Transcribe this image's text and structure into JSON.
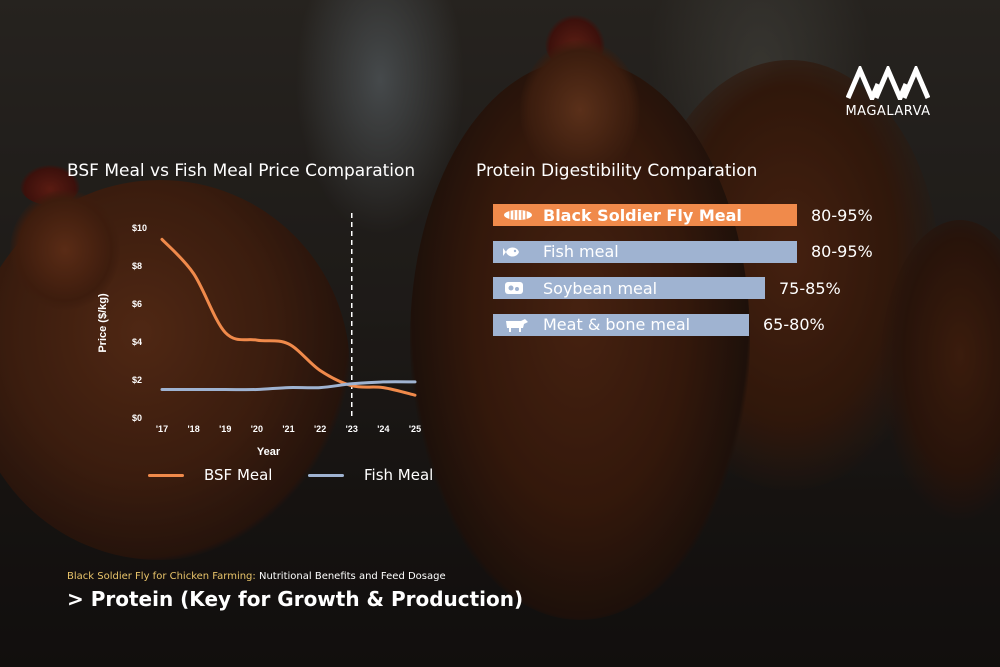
{
  "colors": {
    "bsf": "#f08a4b",
    "fish": "#9fb3d1",
    "bar_blue": "#9fb3d1",
    "bar_orange": "#f08a4b",
    "accent_text": "#e9c46a"
  },
  "logo": {
    "text": "MAGALARVA"
  },
  "left_title": "BSF Meal vs Fish Meal Price Comparation",
  "right_title": "Protein Digestibility Comparation",
  "legend": {
    "bsf": "BSF Meal",
    "fish": "Fish Meal"
  },
  "footer": {
    "subtitle_accent": "Black Soldier Fly for Chicken Farming:",
    "subtitle_rest": " Nutritional Benefits and Feed Dosage",
    "heading": "> Protein (Key for Growth & Production)"
  },
  "chart_data": [
    {
      "type": "line",
      "title": "BSF Meal vs Fish Meal Price Comparation",
      "xlabel": "Year",
      "ylabel": "Price ($/kg)",
      "x": [
        "'17",
        "'18",
        "'19",
        "'20",
        "'21",
        "'22",
        "'23",
        "'24",
        "'25"
      ],
      "yticks": [
        "$0",
        "$2",
        "$4",
        "$6",
        "$8",
        "$10"
      ],
      "ylim": [
        0,
        10
      ],
      "grid": false,
      "vertical_marker_at": "'23",
      "legend_position": "bottom",
      "series": [
        {
          "name": "BSF Meal",
          "values": [
            9.4,
            7.6,
            4.5,
            4.1,
            3.9,
            2.5,
            1.7,
            1.6,
            1.2
          ]
        },
        {
          "name": "Fish Meal",
          "values": [
            1.5,
            1.5,
            1.5,
            1.5,
            1.6,
            1.6,
            1.8,
            1.9,
            1.9
          ]
        }
      ]
    },
    {
      "type": "bar",
      "orientation": "horizontal",
      "title": "Protein Digestibility Comparation",
      "categories": [
        "Black Soldier Fly Meal",
        "Fish meal",
        "Soybean meal",
        "Meat & bone meal"
      ],
      "ranges": [
        "80-95%",
        "80-95%",
        "75-85%",
        "65-80%"
      ],
      "values": [
        95,
        95,
        85,
        80
      ],
      "icons": [
        "larva-icon",
        "fish-icon",
        "soybean-icon",
        "cow-icon"
      ],
      "highlight": "Black Soldier Fly Meal"
    }
  ]
}
